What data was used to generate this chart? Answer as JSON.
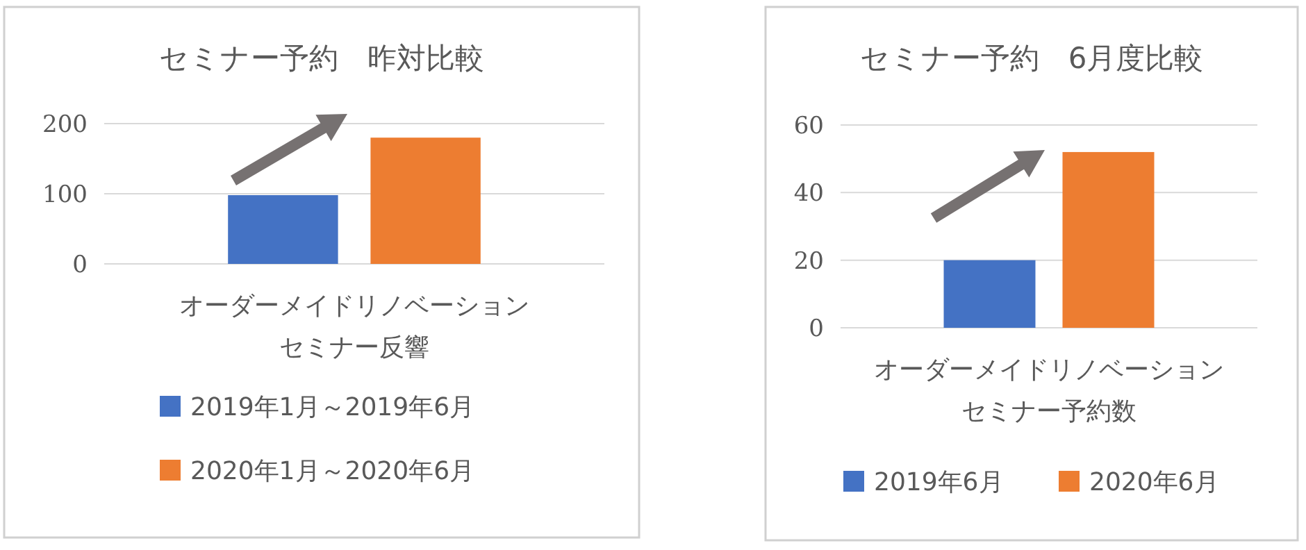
{
  "chart_data": [
    {
      "type": "bar",
      "title": "セミナー予約　昨対比較",
      "categories": [
        "オーダーメイドリノベーションセミナー反響"
      ],
      "series": [
        {
          "name": "2019年1月～2019年6月",
          "color": "#4472c4",
          "values": [
            98
          ]
        },
        {
          "name": "2020年1月～2020年6月",
          "color": "#ed7d31",
          "values": [
            180
          ]
        }
      ],
      "ylim": [
        0,
        200
      ],
      "yticks": [
        0,
        100,
        200
      ],
      "grid": "y",
      "legend": "bottom"
    },
    {
      "type": "bar",
      "title": "セミナー予約　6月度比較",
      "categories": [
        "オーダーメイドリノベーションセミナー予約数"
      ],
      "series": [
        {
          "name": "2019年6月",
          "color": "#4472c4",
          "values": [
            20
          ]
        },
        {
          "name": "2020年6月",
          "color": "#ed7d31",
          "values": [
            52
          ]
        }
      ],
      "ylim": [
        0,
        60
      ],
      "yticks": [
        0,
        20,
        40,
        60
      ],
      "grid": "y",
      "legend": "bottom"
    }
  ]
}
